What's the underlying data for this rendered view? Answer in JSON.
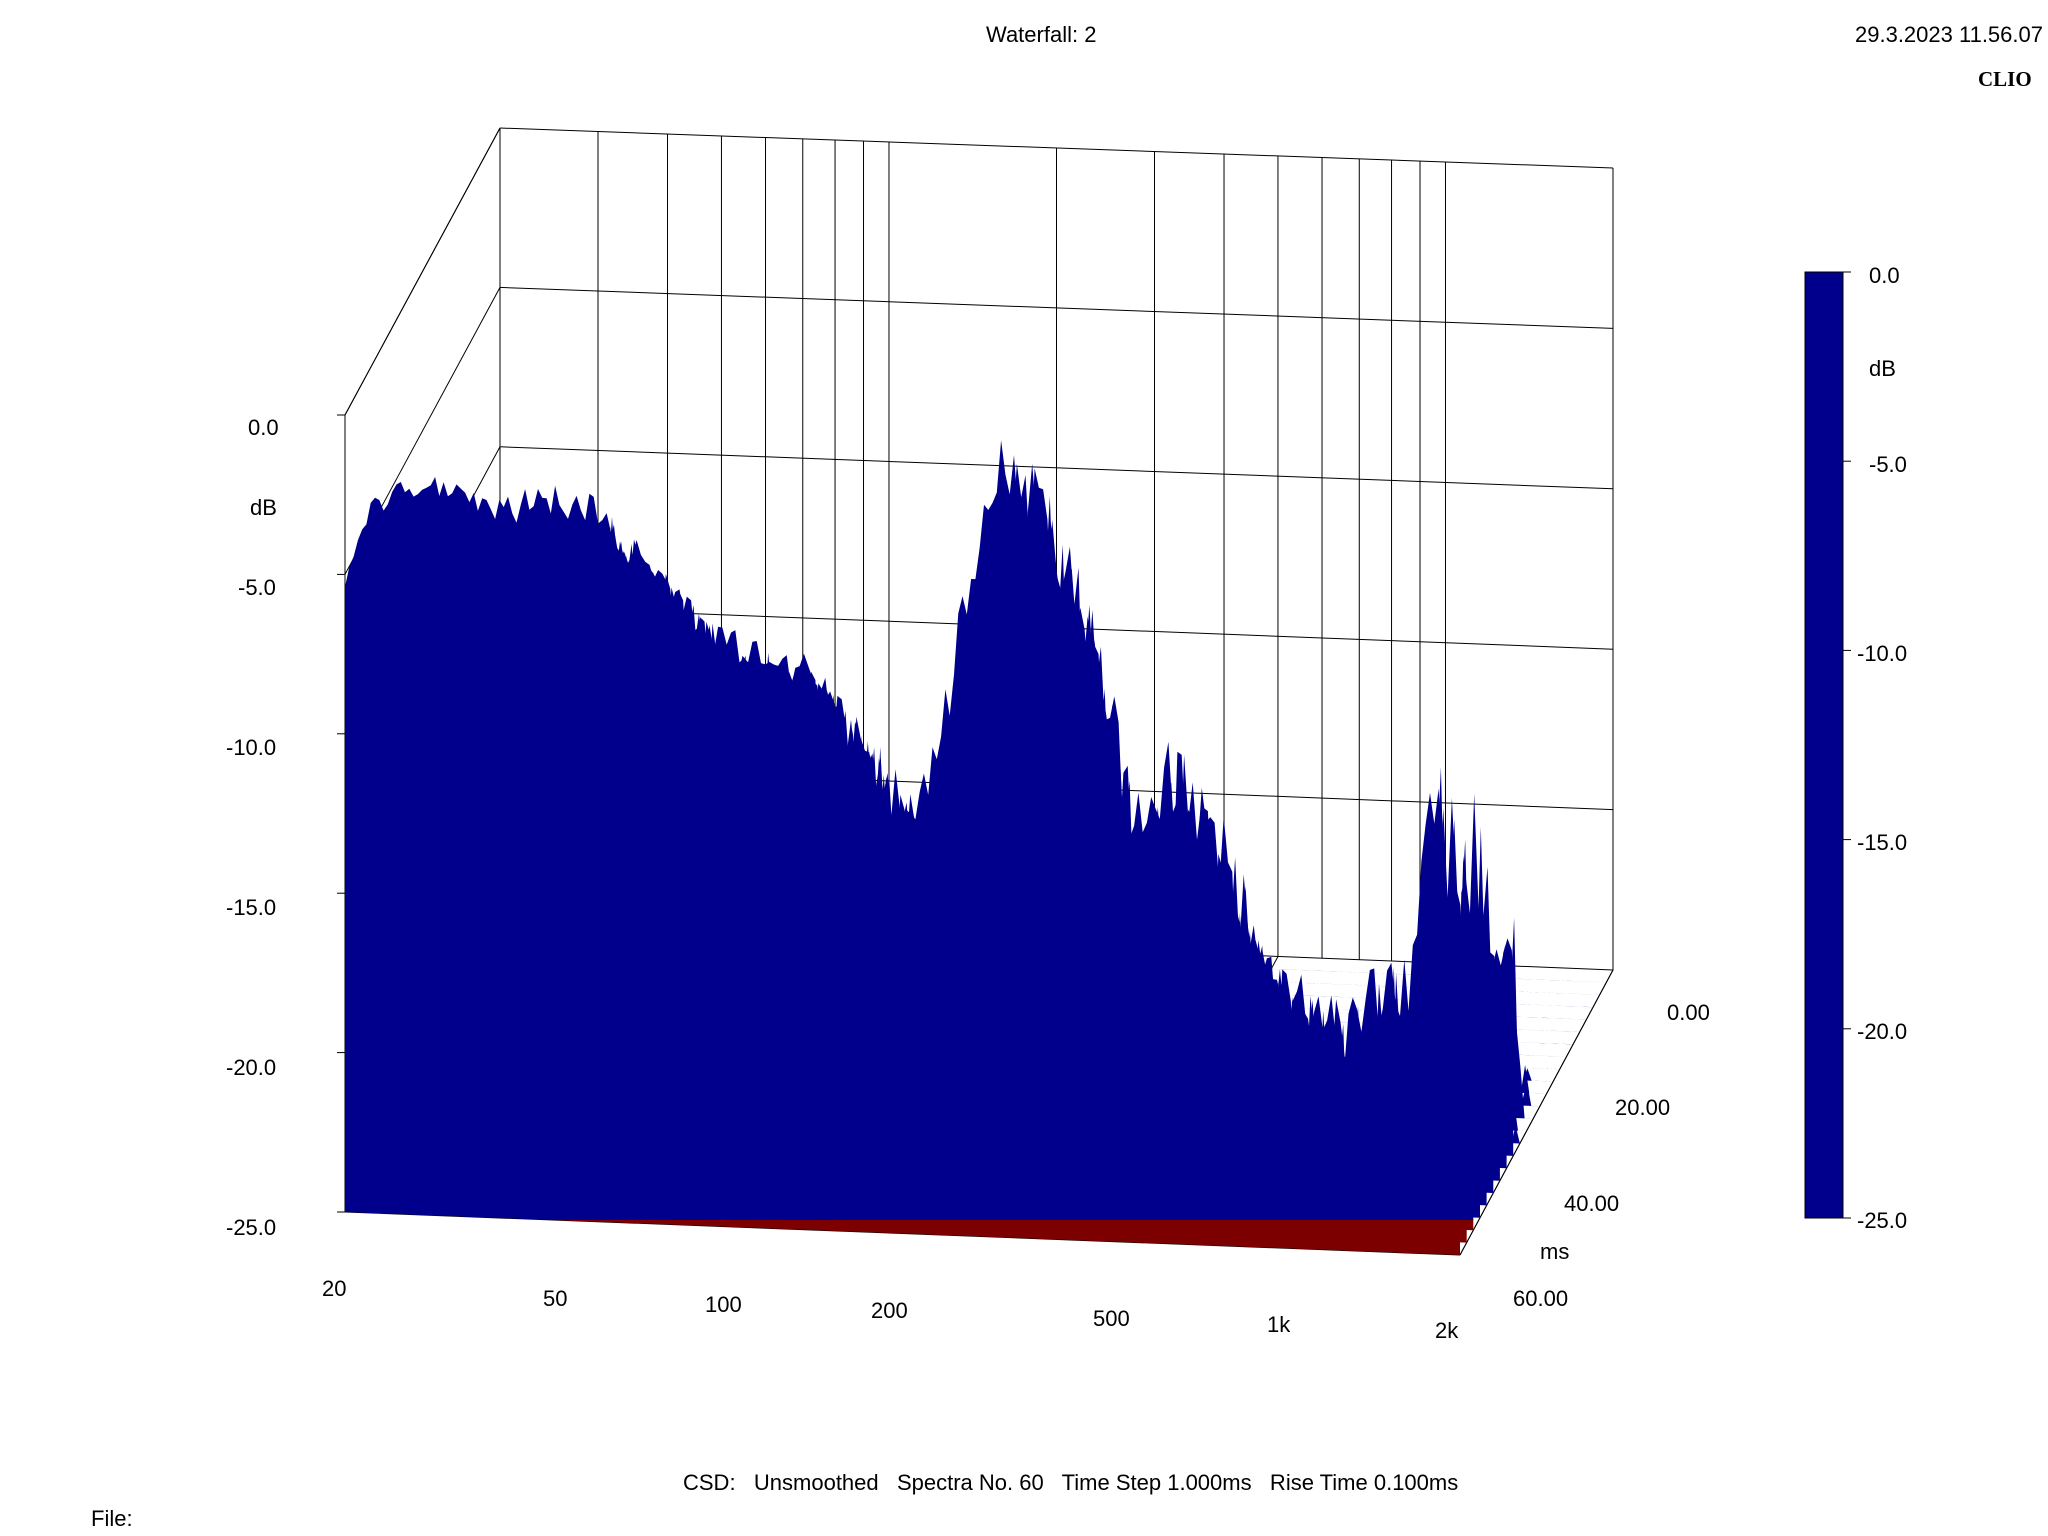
{
  "header": {
    "title": "Waterfall: 2",
    "timestamp": "29.3.2023 11.56.07",
    "brand": "CLIO"
  },
  "footer": {
    "settings": "CSD:   Unsmoothed   Spectra No. 60   Time Step 1.000ms   Rise Time 0.100ms",
    "file_label": "File:"
  },
  "chart_data": {
    "type": "waterfall",
    "title": "Waterfall: 2",
    "x_axis": {
      "scale": "log",
      "range": [
        20,
        2000
      ],
      "tick_labels": [
        "20",
        "50",
        "100",
        "200",
        "500",
        "1k",
        "2k"
      ],
      "tick_values": [
        20,
        50,
        100,
        200,
        500,
        1000,
        2000
      ]
    },
    "y_axis": {
      "unit_label": "dB",
      "range": [
        -25,
        0
      ],
      "tick_labels": [
        "0.0",
        "-5.0",
        "-10.0",
        "-15.0",
        "-20.0",
        "-25.0"
      ],
      "tick_values": [
        0,
        -5,
        -10,
        -15,
        -20,
        -25
      ]
    },
    "z_axis": {
      "unit_label": "ms",
      "range": [
        0,
        60
      ],
      "tick_labels": [
        "0.00",
        "20.00",
        "40.00",
        "60.00"
      ],
      "tick_values": [
        0,
        20,
        40,
        60
      ]
    },
    "colorbar": {
      "unit_label": "dB",
      "range": [
        -25,
        0
      ],
      "tick_labels": [
        "0.0",
        "-5.0",
        "-10.0",
        "-15.0",
        "-20.0",
        "-25.0"
      ],
      "tick_values": [
        0,
        -5,
        -10,
        -15,
        -20,
        -25
      ],
      "colormap": [
        "#00008c",
        "#0000ff",
        "#00c8ff",
        "#00ffd2",
        "#ffff00",
        "#ff9600",
        "#ff0000",
        "#7d0000"
      ]
    },
    "spectra": {
      "spectra_count": 60,
      "time_step_ms": 1.0,
      "rise_time_ms": 0.1,
      "first_slice": [
        {
          "f": 20,
          "db": -5.5
        },
        {
          "f": 22,
          "db": -3.0
        },
        {
          "f": 25,
          "db": -2.3
        },
        {
          "f": 30,
          "db": -2.0
        },
        {
          "f": 35,
          "db": -2.5
        },
        {
          "f": 40,
          "db": -2.8
        },
        {
          "f": 45,
          "db": -2.3
        },
        {
          "f": 50,
          "db": -2.6
        },
        {
          "f": 55,
          "db": -2.4
        },
        {
          "f": 60,
          "db": -3.5
        },
        {
          "f": 70,
          "db": -4.5
        },
        {
          "f": 80,
          "db": -5.5
        },
        {
          "f": 90,
          "db": -6.5
        },
        {
          "f": 100,
          "db": -6.8
        },
        {
          "f": 120,
          "db": -7.0
        },
        {
          "f": 140,
          "db": -8.0
        },
        {
          "f": 160,
          "db": -9.5
        },
        {
          "f": 180,
          "db": -11.0
        },
        {
          "f": 200,
          "db": -12.5
        },
        {
          "f": 230,
          "db": -10.0
        },
        {
          "f": 260,
          "db": -5.0
        },
        {
          "f": 290,
          "db": -1.5
        },
        {
          "f": 305,
          "db": -0.2
        },
        {
          "f": 320,
          "db": -1.5
        },
        {
          "f": 350,
          "db": -5.5
        },
        {
          "f": 380,
          "db": -9.5
        },
        {
          "f": 420,
          "db": -12.0
        },
        {
          "f": 480,
          "db": -13.0
        },
        {
          "f": 540,
          "db": -11.5
        },
        {
          "f": 600,
          "db": -10.0
        },
        {
          "f": 660,
          "db": -12.5
        },
        {
          "f": 750,
          "db": -15.0
        },
        {
          "f": 850,
          "db": -16.5
        },
        {
          "f": 1000,
          "db": -17.5
        },
        {
          "f": 1200,
          "db": -18.0
        },
        {
          "f": 1400,
          "db": -17.5
        },
        {
          "f": 1600,
          "db": -16.5
        },
        {
          "f": 1750,
          "db": -12.5
        },
        {
          "f": 1800,
          "db": -10.0
        },
        {
          "f": 1850,
          "db": -13.0
        },
        {
          "f": 1950,
          "db": -16.5
        },
        {
          "f": 2000,
          "db": -17.5
        }
      ]
    }
  }
}
